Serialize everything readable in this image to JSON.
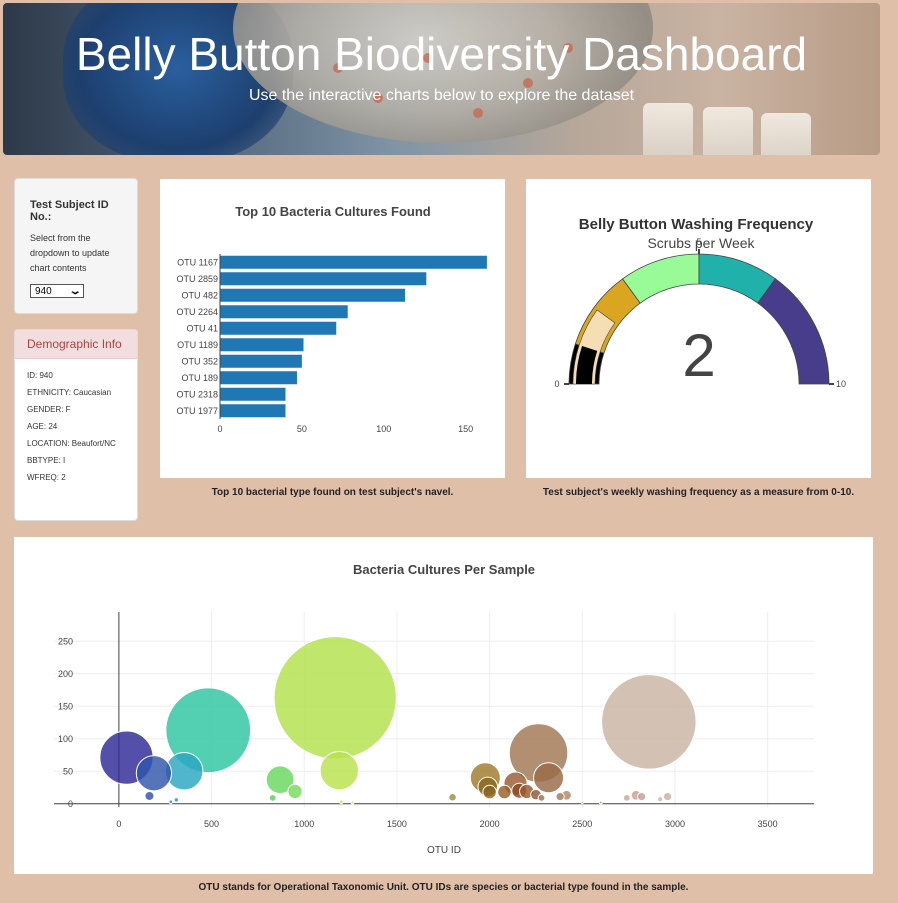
{
  "header": {
    "title": "Belly Button Biodiversity Dashboard",
    "subtitle": "Use the interactive charts below to explore the dataset"
  },
  "selector": {
    "label": "Test Subject ID No.:",
    "hint": "Select from the dropdown to update chart contents",
    "value": "940"
  },
  "demographics": {
    "title": "Demographic Info",
    "rows": [
      "ID: 940",
      "ETHNICITY: Caucasian",
      "GENDER: F",
      "AGE: 24",
      "LOCATION: Beaufort/NC",
      "BBTYPE: I",
      "WFREQ: 2"
    ]
  },
  "captions": {
    "bar": "Top 10 bacterial type found on test subject's navel.",
    "gauge": "Test subject's weekly washing frequency as a measure from 0-10.",
    "bubble": "OTU stands for Operational Taxonomic Unit. OTU IDs are species or bacterial type found in the sample."
  },
  "colors": {
    "bar": "#1f77b4",
    "gauge_steps": [
      "#000000",
      "#daa520",
      "#98fb98",
      "#20b2aa",
      "#483d8b"
    ],
    "gauge_under": "#f5deb3"
  },
  "chart_data": [
    {
      "type": "bar",
      "orientation": "horizontal",
      "title": "Top 10 Bacteria Cultures Found",
      "categories": [
        "OTU 1167",
        "OTU 2859",
        "OTU 482",
        "OTU 2264",
        "OTU 41",
        "OTU 1189",
        "OTU 352",
        "OTU 189",
        "OTU 2318",
        "OTU 1977"
      ],
      "values": [
        163,
        126,
        113,
        78,
        71,
        51,
        50,
        47,
        40,
        40
      ],
      "xticks": [
        0,
        50,
        100,
        150
      ],
      "xlim": [
        0,
        171
      ]
    },
    {
      "type": "gauge",
      "title": "Belly Button Washing Frequency",
      "subtitle": "Scrubs per Week",
      "value": 2,
      "value_label": "2",
      "range": [
        0,
        10
      ],
      "tick_labels": [
        "0",
        "5",
        "10"
      ],
      "steps": [
        [
          0,
          1
        ],
        [
          1,
          3
        ],
        [
          3,
          5
        ],
        [
          5,
          7
        ],
        [
          7,
          10
        ]
      ]
    },
    {
      "type": "scatter",
      "title": "Bacteria Cultures Per Sample",
      "xlabel": "OTU ID",
      "xticks": [
        0,
        500,
        1000,
        1500,
        2000,
        2500,
        3000,
        3500
      ],
      "yticks": [
        0,
        50,
        100,
        150,
        200,
        250
      ],
      "xlim": [
        -350,
        3750
      ],
      "ylim": [
        -5,
        295
      ],
      "points": [
        {
          "x": 41,
          "y": 71,
          "r": 71,
          "c": "#2e2a96"
        },
        {
          "x": 189,
          "y": 47,
          "r": 47,
          "c": "#2f55ab"
        },
        {
          "x": 352,
          "y": 50,
          "r": 50,
          "c": "#2aa6c0"
        },
        {
          "x": 482,
          "y": 113,
          "r": 113,
          "c": "#2dc4a0"
        },
        {
          "x": 1167,
          "y": 163,
          "r": 163,
          "c": "#b2e04a"
        },
        {
          "x": 1189,
          "y": 51,
          "r": 51,
          "c": "#b8e24a"
        },
        {
          "x": 870,
          "y": 37,
          "r": 37,
          "c": "#66d85c"
        },
        {
          "x": 950,
          "y": 19,
          "r": 19,
          "c": "#7ad95c"
        },
        {
          "x": 830,
          "y": 9,
          "r": 9,
          "c": "#5ccf5a"
        },
        {
          "x": 165,
          "y": 12,
          "r": 12,
          "c": "#3050b0"
        },
        {
          "x": 310,
          "y": 6,
          "r": 6,
          "c": "#2f8fbf"
        },
        {
          "x": 1977,
          "y": 40,
          "r": 40,
          "c": "#a07a2a"
        },
        {
          "x": 1990,
          "y": 26,
          "r": 26,
          "c": "#8a6a22"
        },
        {
          "x": 2000,
          "y": 18,
          "r": 18,
          "c": "#8b6420"
        },
        {
          "x": 2080,
          "y": 18,
          "r": 18,
          "c": "#9a5e2a"
        },
        {
          "x": 2140,
          "y": 31,
          "r": 31,
          "c": "#9a5a30"
        },
        {
          "x": 2160,
          "y": 20,
          "r": 20,
          "c": "#8a4a22"
        },
        {
          "x": 2200,
          "y": 19,
          "r": 19,
          "c": "#9a5830"
        },
        {
          "x": 2264,
          "y": 78,
          "r": 78,
          "c": "#a07650"
        },
        {
          "x": 2318,
          "y": 40,
          "r": 40,
          "c": "#9a6a48"
        },
        {
          "x": 2250,
          "y": 14,
          "r": 14,
          "c": "#8e5838"
        },
        {
          "x": 2280,
          "y": 9,
          "r": 9,
          "c": "#a46e50"
        },
        {
          "x": 2380,
          "y": 11,
          "r": 11,
          "c": "#a47a5a"
        },
        {
          "x": 2415,
          "y": 13,
          "r": 13,
          "c": "#b08a6a"
        },
        {
          "x": 1800,
          "y": 10,
          "r": 10,
          "c": "#a28a40"
        },
        {
          "x": 2859,
          "y": 126,
          "r": 126,
          "c": "#c9b4a2"
        },
        {
          "x": 2740,
          "y": 9,
          "r": 9,
          "c": "#c8a89a"
        },
        {
          "x": 2790,
          "y": 13,
          "r": 13,
          "c": "#c4a296"
        },
        {
          "x": 2820,
          "y": 11,
          "r": 11,
          "c": "#c2a092"
        },
        {
          "x": 2960,
          "y": 11,
          "r": 11,
          "c": "#c9b0a4"
        },
        {
          "x": 2920,
          "y": 7,
          "r": 7,
          "c": "#ccb4a8"
        },
        {
          "x": 280,
          "y": 3,
          "r": 5,
          "c": "#3088bc"
        },
        {
          "x": 1200,
          "y": 3,
          "r": 5,
          "c": "#c0e250"
        },
        {
          "x": 1260,
          "y": 2,
          "r": 4,
          "c": "#c8e466"
        },
        {
          "x": 2600,
          "y": 2,
          "r": 4,
          "c": "#b89a80"
        },
        {
          "x": 2500,
          "y": 2,
          "r": 3,
          "c": "#b09070"
        }
      ]
    }
  ]
}
